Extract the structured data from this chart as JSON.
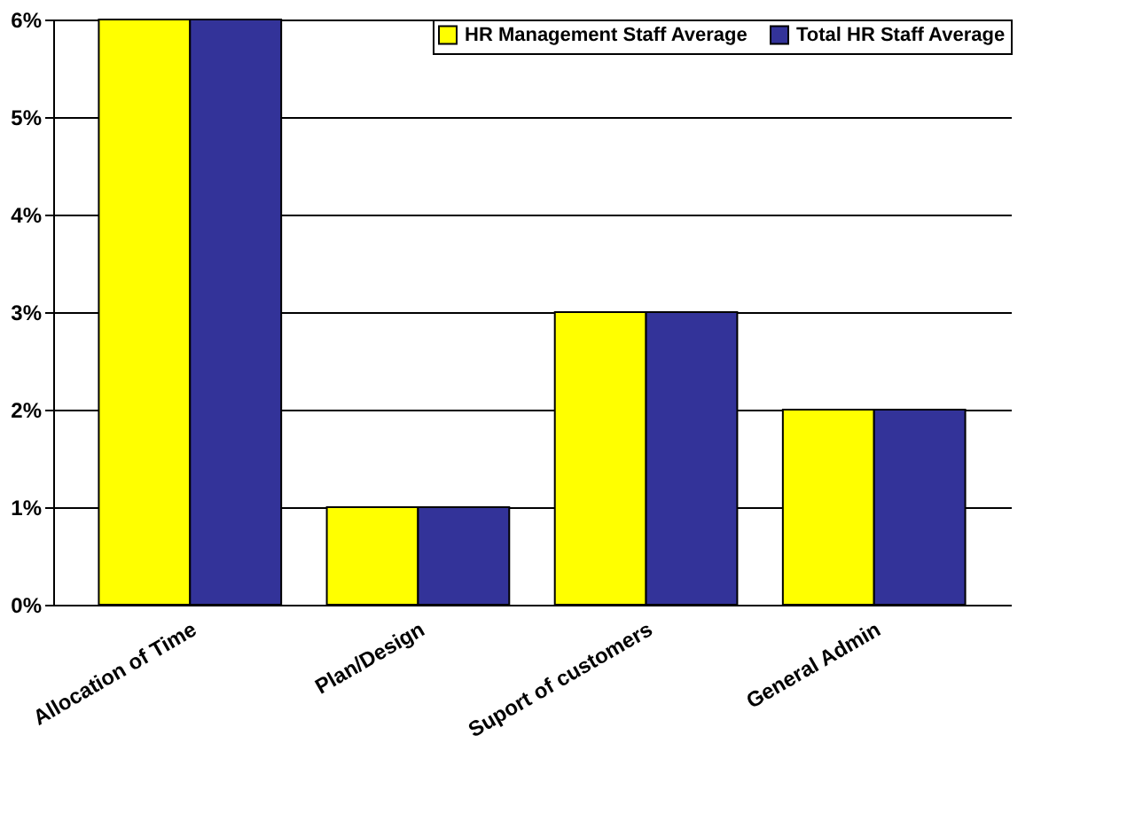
{
  "chart_data": {
    "type": "bar",
    "categories": [
      "Allocation of Time",
      "Plan/Design",
      "Suport of customers",
      "General Admin"
    ],
    "series": [
      {
        "name": "HR Management Staff Average",
        "color": "#ffff00",
        "values": [
          6,
          1,
          3,
          2
        ]
      },
      {
        "name": "Total HR Staff Average",
        "color": "#333399",
        "values": [
          6,
          1,
          3,
          2
        ]
      }
    ],
    "ylim": [
      0,
      6
    ],
    "yticks": [
      {
        "value": 0,
        "label": "0%"
      },
      {
        "value": 1,
        "label": "1%"
      },
      {
        "value": 2,
        "label": "2%"
      },
      {
        "value": 3,
        "label": "3%"
      },
      {
        "value": 4,
        "label": "4%"
      },
      {
        "value": 5,
        "label": "5%"
      },
      {
        "value": 6,
        "label": "6%"
      }
    ],
    "grid": "y",
    "legend": "top right"
  }
}
